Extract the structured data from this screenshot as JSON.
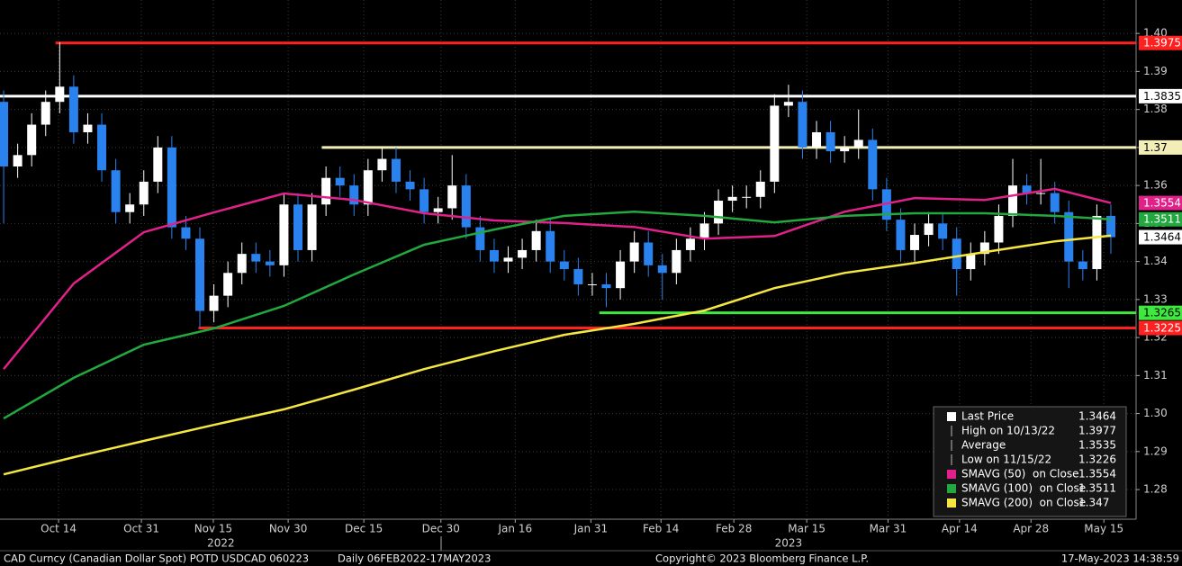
{
  "chart_data": {
    "type": "candlestick",
    "up_color": "#ffffff",
    "down_color": "#2a82ef",
    "grid": true,
    "xlim": [
      -0.26,
      80.8
    ],
    "ylim": [
      1.2722,
      1.4088
    ],
    "yticks": [
      1.28,
      1.29,
      {
        "value": 1.3,
        "label": "1.30"
      },
      1.31,
      1.32,
      1.33,
      1.34,
      1.35,
      1.36,
      1.37,
      1.38,
      1.39,
      {
        "value": 1.4,
        "label": "1.40"
      }
    ],
    "xticks": [
      {
        "value": 3.92,
        "label": "Oct 14"
      },
      {
        "value": 9.83,
        "label": "Oct 31"
      },
      {
        "value": 14.96,
        "label": "Nov 15"
      },
      {
        "value": 20.3,
        "label": "Nov 30"
      },
      {
        "value": 25.7,
        "label": "Dec 15"
      },
      {
        "value": 31.2,
        "label": "Dec 30"
      },
      {
        "value": 36.5,
        "label": "Jan 16"
      },
      {
        "value": 41.9,
        "label": "Jan 31"
      },
      {
        "value": 46.9,
        "label": "Feb 14"
      },
      {
        "value": 52.1,
        "label": "Feb 28"
      },
      {
        "value": 57.3,
        "label": "Mar 15"
      },
      {
        "value": 63.1,
        "label": "Mar 31"
      },
      {
        "value": 68.2,
        "label": "Apr 14"
      },
      {
        "value": 73.3,
        "label": "Apr 28"
      },
      {
        "value": 78.5,
        "label": "May 15"
      }
    ],
    "year_labels": [
      {
        "value": 15.5,
        "label": "2022"
      },
      {
        "value": 56,
        "label": "2023"
      }
    ],
    "candles": {
      "open": [
        1.382,
        1.365,
        1.368,
        1.376,
        1.382,
        1.386,
        1.374,
        1.376,
        1.364,
        1.353,
        1.355,
        1.361,
        1.37,
        1.349,
        1.346,
        1.327,
        1.331,
        1.337,
        1.342,
        1.34,
        1.339,
        1.355,
        1.343,
        1.355,
        1.362,
        1.36,
        1.355,
        1.364,
        1.367,
        1.361,
        1.359,
        1.353,
        1.354,
        1.36,
        1.349,
        1.343,
        1.34,
        1.341,
        1.343,
        1.348,
        1.34,
        1.338,
        1.334,
        1.334,
        1.333,
        1.34,
        1.345,
        1.339,
        1.337,
        1.343,
        1.346,
        1.35,
        1.356,
        1.357,
        1.357,
        1.361,
        1.381,
        1.382,
        1.37,
        1.374,
        1.369,
        1.37,
        1.372,
        1.359,
        1.351,
        1.343,
        1.347,
        1.35,
        1.346,
        1.338,
        1.342,
        1.345,
        1.352,
        1.36,
        1.358,
        1.358,
        1.353,
        1.34,
        1.338,
        1.352
      ],
      "high": [
        1.385,
        1.371,
        1.379,
        1.385,
        1.3977,
        1.389,
        1.379,
        1.379,
        1.367,
        1.358,
        1.364,
        1.373,
        1.373,
        1.352,
        1.349,
        1.334,
        1.34,
        1.345,
        1.345,
        1.343,
        1.358,
        1.358,
        1.358,
        1.365,
        1.365,
        1.363,
        1.367,
        1.37,
        1.37,
        1.364,
        1.362,
        1.357,
        1.368,
        1.363,
        1.352,
        1.346,
        1.344,
        1.346,
        1.351,
        1.351,
        1.343,
        1.341,
        1.337,
        1.337,
        1.343,
        1.348,
        1.348,
        1.342,
        1.346,
        1.349,
        1.353,
        1.359,
        1.36,
        1.36,
        1.364,
        1.384,
        1.3865,
        1.385,
        1.377,
        1.377,
        1.373,
        1.38,
        1.375,
        1.362,
        1.354,
        1.35,
        1.353,
        1.353,
        1.349,
        1.345,
        1.348,
        1.355,
        1.367,
        1.363,
        1.367,
        1.361,
        1.356,
        1.343,
        1.355,
        1.355
      ],
      "low": [
        1.35,
        1.362,
        1.365,
        1.373,
        1.379,
        1.371,
        1.371,
        1.361,
        1.35,
        1.35,
        1.352,
        1.358,
        1.346,
        1.343,
        1.3226,
        1.324,
        1.328,
        1.334,
        1.337,
        1.336,
        1.336,
        1.34,
        1.34,
        1.352,
        1.357,
        1.352,
        1.352,
        1.361,
        1.358,
        1.356,
        1.35,
        1.35,
        1.351,
        1.346,
        1.34,
        1.337,
        1.337,
        1.338,
        1.34,
        1.337,
        1.335,
        1.331,
        1.331,
        1.328,
        1.33,
        1.337,
        1.336,
        1.33,
        1.334,
        1.34,
        1.343,
        1.347,
        1.353,
        1.354,
        1.354,
        1.358,
        1.378,
        1.367,
        1.367,
        1.366,
        1.366,
        1.367,
        1.356,
        1.348,
        1.34,
        1.34,
        1.344,
        1.343,
        1.331,
        1.335,
        1.339,
        1.342,
        1.349,
        1.355,
        1.355,
        1.35,
        1.333,
        1.335,
        1.335,
        1.342
      ],
      "close": [
        1.365,
        1.368,
        1.376,
        1.382,
        1.386,
        1.374,
        1.376,
        1.364,
        1.353,
        1.355,
        1.361,
        1.37,
        1.349,
        1.346,
        1.327,
        1.331,
        1.337,
        1.342,
        1.34,
        1.339,
        1.355,
        1.343,
        1.355,
        1.362,
        1.36,
        1.355,
        1.364,
        1.367,
        1.361,
        1.359,
        1.353,
        1.354,
        1.36,
        1.349,
        1.343,
        1.34,
        1.341,
        1.343,
        1.348,
        1.34,
        1.338,
        1.334,
        1.334,
        1.333,
        1.34,
        1.345,
        1.339,
        1.337,
        1.343,
        1.346,
        1.35,
        1.356,
        1.357,
        1.357,
        1.361,
        1.381,
        1.382,
        1.37,
        1.374,
        1.369,
        1.37,
        1.372,
        1.359,
        1.351,
        1.343,
        1.347,
        1.35,
        1.346,
        1.338,
        1.342,
        1.345,
        1.352,
        1.36,
        1.358,
        1.358,
        1.353,
        1.34,
        1.338,
        1.352,
        1.3464
      ]
    },
    "series": [
      {
        "name": "SMAVG (50)  on Close",
        "color": "#e0218a",
        "legend_value": 1.3554,
        "x": [
          0,
          5,
          10,
          15,
          20,
          25,
          30,
          35,
          40,
          45,
          50,
          55,
          60,
          65,
          70,
          75,
          79
        ],
        "values": [
          1.3117,
          1.3342,
          1.3477,
          1.3529,
          1.3579,
          1.3562,
          1.3527,
          1.3508,
          1.3501,
          1.3491,
          1.346,
          1.3467,
          1.3531,
          1.3567,
          1.3562,
          1.3591,
          1.3554
        ]
      },
      {
        "name": "SMAVG (100)  on Close",
        "color": "#22a83e",
        "legend_value": 1.3511,
        "x": [
          0,
          5,
          10,
          15,
          20,
          25,
          30,
          35,
          40,
          45,
          50,
          55,
          60,
          65,
          70,
          75,
          79
        ],
        "values": [
          1.2987,
          1.3094,
          1.3181,
          1.3224,
          1.3283,
          1.3366,
          1.3444,
          1.3484,
          1.352,
          1.3531,
          1.352,
          1.3503,
          1.352,
          1.3527,
          1.3527,
          1.352,
          1.3511
        ]
      },
      {
        "name": "SMAVG (200)  on Close",
        "color": "#f5e642",
        "legend_value": 1.347,
        "x": [
          0,
          5,
          10,
          15,
          20,
          25,
          30,
          35,
          40,
          45,
          50,
          55,
          60,
          65,
          70,
          75,
          79
        ],
        "values": [
          1.284,
          1.2885,
          1.2928,
          1.297,
          1.3011,
          1.3063,
          1.3117,
          1.3164,
          1.3207,
          1.3236,
          1.3271,
          1.333,
          1.337,
          1.3396,
          1.3425,
          1.3453,
          1.3468
        ]
      }
    ],
    "hlines": [
      {
        "value": 1.3975,
        "start": 3.7,
        "color": "#ff2020",
        "text_color": "#ffffff"
      },
      {
        "value": 1.3835,
        "start": -0.26,
        "color": "#ffffff",
        "text_color": "#000000"
      },
      {
        "value": 1.37,
        "start": 22.7,
        "color": "#f3eeb8",
        "text_color": "#000000"
      },
      {
        "value": 1.3265,
        "start": 42.5,
        "color": "#3ee83e",
        "text_color": "#000000"
      },
      {
        "value": 1.3225,
        "start": 13.9,
        "color": "#ff2020",
        "text_color": "#ffffff"
      }
    ],
    "legend": {
      "entries": [
        {
          "label": "Last Price",
          "value": 1.3464,
          "color": "#ffffff"
        },
        {
          "label": "High on 10/13/22",
          "value": 1.3977
        },
        {
          "label": "Average",
          "value": 1.3535
        },
        {
          "label": "Low on 11/15/22",
          "value": 1.3226
        }
      ]
    },
    "footer": {
      "source": "CAD Curncy (Canadian Dollar Spot) POTD USDCAD 060223",
      "range": "Daily 06FEB2022-17MAY2023",
      "copyright": "Copyright© 2023 Bloomberg Finance L.P.",
      "timestamp": "17-May-2023 14:38:59"
    }
  }
}
